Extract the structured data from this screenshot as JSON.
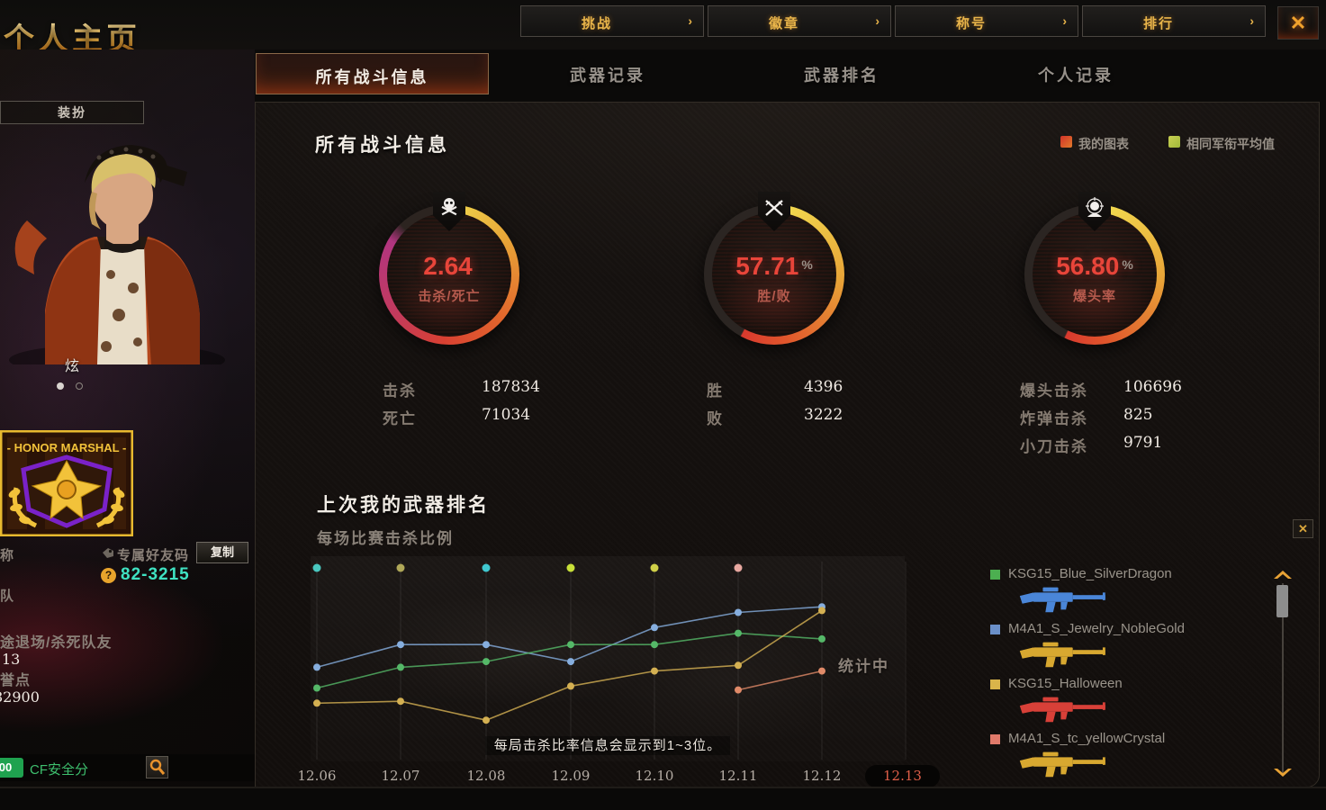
{
  "header": {
    "title": "个人主页",
    "close_label": "✕"
  },
  "topnav": {
    "arrow": "›",
    "items": [
      {
        "label": "挑战"
      },
      {
        "label": "徽章"
      },
      {
        "label": "称号"
      },
      {
        "label": "排行"
      }
    ]
  },
  "tabs": {
    "selected": "所有战斗信息",
    "others": [
      "武器记录",
      "武器排名",
      "个人记录"
    ]
  },
  "left_panel": {
    "dress_tab": "装扮",
    "char_name": "炫",
    "badge_title": "- HONOR MARSHAL -",
    "nick_label_cut": "称",
    "friend_code_label": "专属好友码",
    "copy_button": "复制",
    "friend_code_help": "?",
    "friend_code": "82-3215",
    "clan_label_cut": "队",
    "quit_label_cut": "途退场/杀死队友",
    "quit_value": "13",
    "honor_label_cut": "誉点",
    "honor_value": "82900",
    "security_badge_cut": "00",
    "security_label": "CF安全分"
  },
  "combat": {
    "heading": "所有战斗信息",
    "legend": [
      {
        "label": "我的图表",
        "color": "#d2332a"
      },
      {
        "label": "相同军衔平均值",
        "color": "#c9cf52"
      }
    ],
    "gauges": [
      {
        "value": "2.64",
        "unit": "",
        "label": "击杀/死亡",
        "icon": "skull-icon"
      },
      {
        "value": "57.71",
        "unit": "%",
        "label": "胜/败",
        "icon": "crossed-rifles-icon"
      },
      {
        "value": "56.80",
        "unit": "%",
        "label": "爆头率",
        "icon": "headshot-icon"
      }
    ],
    "stats": [
      {
        "rows": [
          [
            "击杀",
            "187834"
          ],
          [
            "死亡",
            "71034"
          ]
        ]
      },
      {
        "rows": [
          [
            "胜",
            "4396"
          ],
          [
            "败",
            "3222"
          ]
        ]
      },
      {
        "rows": [
          [
            "爆头击杀",
            "106696"
          ],
          [
            "炸弹击杀",
            "825"
          ],
          [
            "小刀击杀",
            "9791"
          ]
        ]
      }
    ]
  },
  "weapon_section": {
    "heading": "上次我的武器排名",
    "subheading": "每场比赛击杀比例",
    "status_label": "统计中",
    "note": "每局击杀比率信息会显示到1~3位。"
  },
  "chart_data": {
    "type": "line",
    "title": "每场比赛击杀比例",
    "x": [
      "12.06",
      "12.07",
      "12.08",
      "12.09",
      "12.10",
      "12.11",
      "12.12",
      "12.13"
    ],
    "highlighted_x": "12.13",
    "ylim": [
      0,
      100
    ],
    "grid": "vertical",
    "legend_position": "top-right",
    "series": [
      {
        "name": "blue",
        "color": "#86aede",
        "values": [
          46,
          58,
          58,
          49,
          67,
          75,
          78,
          null
        ]
      },
      {
        "name": "green",
        "color": "#55b868",
        "values": [
          35,
          46,
          49,
          58,
          58,
          64,
          61,
          null
        ]
      },
      {
        "name": "yellow",
        "color": "#d4b052",
        "values": [
          27,
          28,
          18,
          36,
          44,
          47,
          76,
          null
        ]
      },
      {
        "name": "orange",
        "color": "#e08a68",
        "values": [
          null,
          null,
          null,
          null,
          null,
          34,
          44,
          null
        ]
      }
    ],
    "overflow_dots": [
      {
        "x": "12.06",
        "color": "#4ac8c0"
      },
      {
        "x": "12.07",
        "color": "#b0a858"
      },
      {
        "x": "12.08",
        "color": "#40c8d0"
      },
      {
        "x": "12.09",
        "color": "#c8e038"
      },
      {
        "x": "12.10",
        "color": "#d0d048"
      },
      {
        "x": "12.11",
        "color": "#e8a8a0"
      }
    ],
    "annotation": "每局击杀比率信息会显示到1~3位。",
    "status": "统计中"
  },
  "weapons": {
    "items": [
      {
        "name": "KSG15_Blue_SilverDragon",
        "swatch_color": "#4caf50",
        "gun_color": "#4a86d8"
      },
      {
        "name": "M4A1_S_Jewelry_NobleGold",
        "swatch_color": "#6a8fc8",
        "gun_color": "#d8a830"
      },
      {
        "name": "KSG15_Halloween",
        "swatch_color": "#d9b44a",
        "gun_color": "#d84038"
      },
      {
        "name": "M4A1_S_tc_yellowCrystal",
        "swatch_color": "#e07a6a",
        "gun_color": "#d8a830"
      }
    ]
  }
}
